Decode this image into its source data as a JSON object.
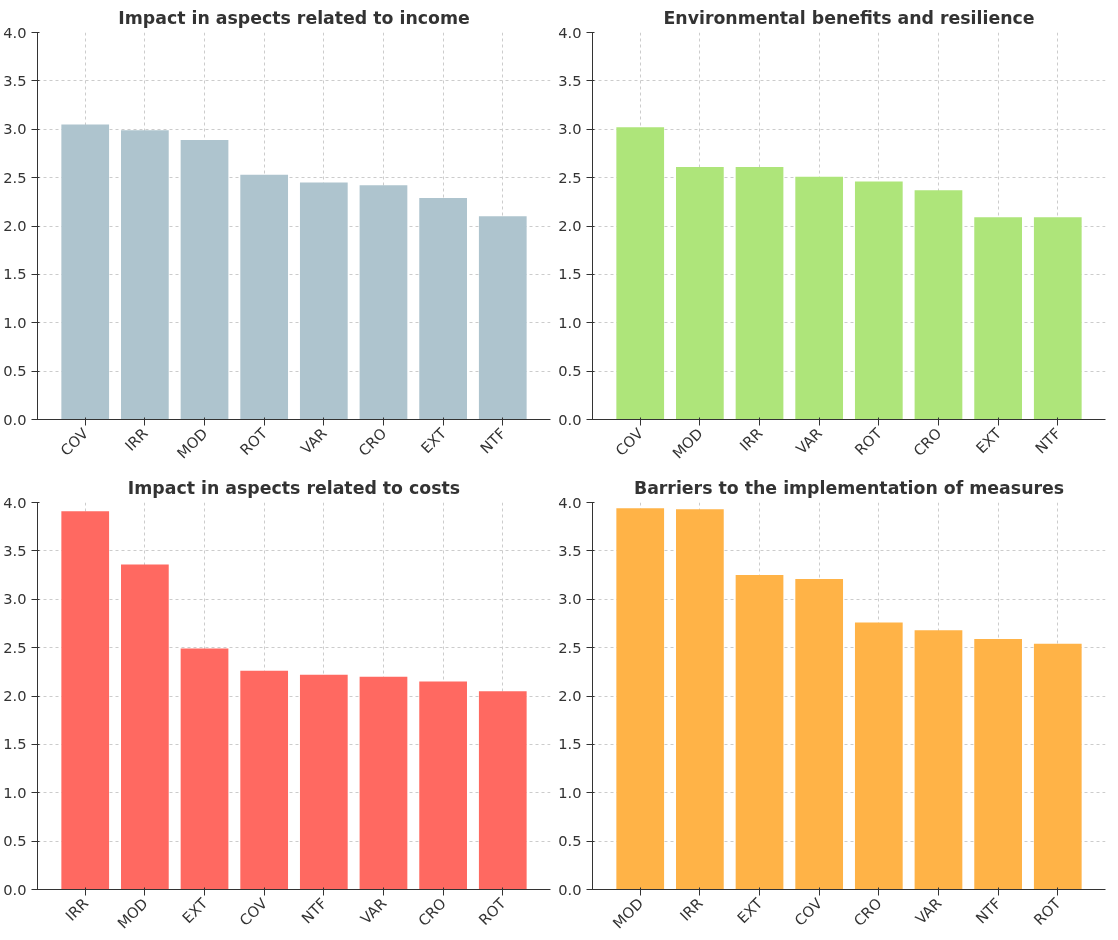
{
  "chart_data": [
    {
      "type": "bar",
      "title": "Impact in aspects related to income",
      "categories": [
        "COV",
        "IRR",
        "MOD",
        "ROT",
        "VAR",
        "CRO",
        "EXT",
        "NTF"
      ],
      "values": [
        3.05,
        2.99,
        2.89,
        2.53,
        2.45,
        2.42,
        2.29,
        2.1
      ],
      "color": "#aec4ce",
      "ylim": [
        0,
        4
      ],
      "yticks": [
        {
          "value": 0,
          "label": "0.0"
        },
        {
          "value": 0.5,
          "label": "0.5"
        },
        {
          "value": 1,
          "label": "1.0"
        },
        {
          "value": 1.5,
          "label": "1.5"
        },
        {
          "value": 2,
          "label": "2.0"
        },
        {
          "value": 2.5,
          "label": "2.5"
        },
        {
          "value": 3,
          "label": "3.0"
        },
        {
          "value": 3.5,
          "label": "3.5"
        },
        {
          "value": 4,
          "label": "4.0"
        }
      ],
      "grid": true
    },
    {
      "type": "bar",
      "title": "Environmental benefits and resilience",
      "categories": [
        "COV",
        "MOD",
        "IRR",
        "VAR",
        "ROT",
        "CRO",
        "EXT",
        "NTF"
      ],
      "values": [
        3.02,
        2.61,
        2.61,
        2.51,
        2.46,
        2.37,
        2.09,
        2.09
      ],
      "color": "#aee57a",
      "ylim": [
        0,
        4
      ],
      "yticks": [
        {
          "value": 0,
          "label": "0.0"
        },
        {
          "value": 0.5,
          "label": "0.5"
        },
        {
          "value": 1,
          "label": "1.0"
        },
        {
          "value": 1.5,
          "label": "1.5"
        },
        {
          "value": 2,
          "label": "2.0"
        },
        {
          "value": 2.5,
          "label": "2.5"
        },
        {
          "value": 3,
          "label": "3.0"
        },
        {
          "value": 3.5,
          "label": "3.5"
        },
        {
          "value": 4,
          "label": "4.0"
        }
      ],
      "grid": true
    },
    {
      "type": "bar",
      "title": "Impact in aspects related to costs",
      "categories": [
        "IRR",
        "MOD",
        "EXT",
        "COV",
        "NTF",
        "VAR",
        "CRO",
        "ROT"
      ],
      "values": [
        3.91,
        3.36,
        2.49,
        2.26,
        2.22,
        2.2,
        2.15,
        2.05
      ],
      "color": "#ff6961",
      "ylim": [
        0,
        4
      ],
      "yticks": [
        {
          "value": 0,
          "label": "0.0"
        },
        {
          "value": 0.5,
          "label": "0.5"
        },
        {
          "value": 1,
          "label": "1.0"
        },
        {
          "value": 1.5,
          "label": "1.5"
        },
        {
          "value": 2,
          "label": "2.0"
        },
        {
          "value": 2.5,
          "label": "2.5"
        },
        {
          "value": 3,
          "label": "3.0"
        },
        {
          "value": 3.5,
          "label": "3.5"
        },
        {
          "value": 4,
          "label": "4.0"
        }
      ],
      "grid": true
    },
    {
      "type": "bar",
      "title": "Barriers to the implementation of measures",
      "categories": [
        "MOD",
        "IRR",
        "EXT",
        "COV",
        "CRO",
        "VAR",
        "NTF",
        "ROT"
      ],
      "values": [
        3.94,
        3.93,
        3.25,
        3.21,
        2.76,
        2.68,
        2.59,
        2.54
      ],
      "color": "#ffb347",
      "ylim": [
        0,
        4
      ],
      "yticks": [
        {
          "value": 0,
          "label": "0.0"
        },
        {
          "value": 0.5,
          "label": "0.5"
        },
        {
          "value": 1,
          "label": "1.0"
        },
        {
          "value": 1.5,
          "label": "1.5"
        },
        {
          "value": 2,
          "label": "2.0"
        },
        {
          "value": 2.5,
          "label": "2.5"
        },
        {
          "value": 3,
          "label": "3.0"
        },
        {
          "value": 3.5,
          "label": "3.5"
        },
        {
          "value": 4,
          "label": "4.0"
        }
      ],
      "grid": true
    }
  ]
}
